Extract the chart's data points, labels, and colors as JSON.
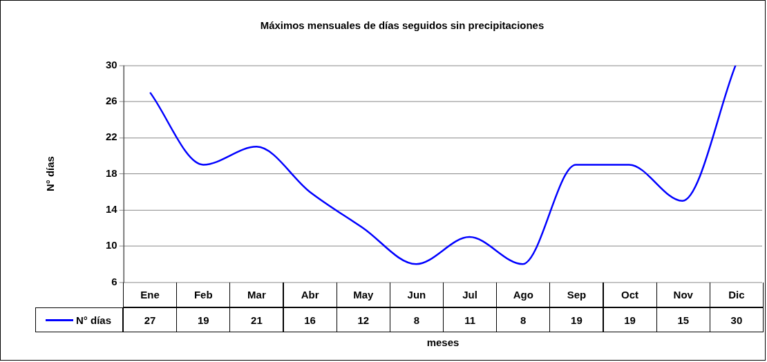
{
  "chart_data": {
    "type": "line",
    "title": "Máximos mensuales de días seguidos sin precipitaciones",
    "xlabel": "meses",
    "ylabel": "N° días",
    "categories": [
      "Ene",
      "Feb",
      "Mar",
      "Abr",
      "May",
      "Jun",
      "Jul",
      "Ago",
      "Sep",
      "Oct",
      "Nov",
      "Dic"
    ],
    "series": [
      {
        "name": "N° días",
        "color": "#0000ff",
        "values": [
          27,
          19,
          21,
          16,
          12,
          8,
          11,
          8,
          19,
          19,
          15,
          30
        ]
      }
    ],
    "ylim": [
      6,
      30
    ],
    "yticks": [
      6,
      10,
      14,
      18,
      22,
      26,
      30
    ],
    "grid": "y",
    "legend": "bottom",
    "data_labels": true
  }
}
